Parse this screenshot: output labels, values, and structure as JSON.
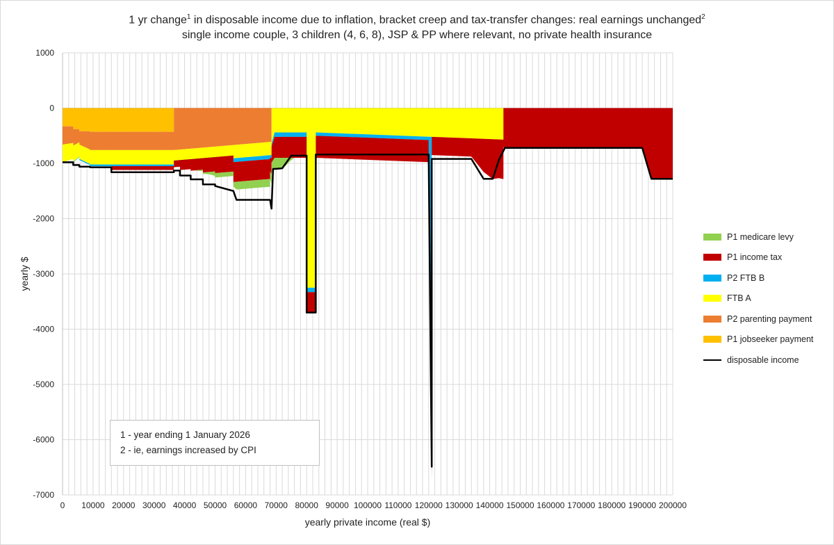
{
  "chart_data": {
    "type": "area",
    "title_line1_main": "1 yr change",
    "title_line1_sup1": "1",
    "title_line1_rest": " in disposable income due to inflation, bracket creep and tax-transfer changes: real earnings unchanged",
    "title_line1_sup2": "2",
    "title_line2": "single income couple, 3 children (4, 6, 8), JSP & PP where relevant, no private health insurance",
    "xlabel": "yearly private income (real $)",
    "ylabel": "yearly $",
    "xlim": [
      0,
      200000
    ],
    "ylim": [
      -7000,
      1000
    ],
    "xticks": [
      0,
      10000,
      20000,
      30000,
      40000,
      50000,
      60000,
      70000,
      80000,
      90000,
      100000,
      110000,
      120000,
      130000,
      140000,
      150000,
      160000,
      170000,
      180000,
      190000,
      200000
    ],
    "yticks": [
      1000,
      0,
      -1000,
      -2000,
      -3000,
      -4000,
      -5000,
      -6000,
      -7000
    ],
    "gridlines": true,
    "legend_position": "right",
    "colors": {
      "medicare": "#92d050",
      "income_tax": "#c00000",
      "ftb_b": "#00b0f0",
      "ftb_a": "#ffff00",
      "parenting": "#ed7d31",
      "jobseeker": "#ffc000",
      "disposable": "#000000"
    },
    "series": [
      {
        "name": "P1 jobseeker payment",
        "key": "jobseeker",
        "base": "zero",
        "x": [
          0,
          1,
          3500,
          3501,
          5500,
          5501,
          9000,
          9001,
          36500,
          36501,
          200000
        ],
        "y": [
          -330,
          -330,
          -330,
          -380,
          -380,
          -420,
          -420,
          -430,
          -430,
          0,
          0
        ]
      },
      {
        "name": "P2 parenting payment",
        "key": "parenting",
        "base": "jobseeker",
        "x": [
          0,
          1,
          3500,
          3501,
          5500,
          5501,
          9000,
          9001,
          36500,
          36501,
          68500,
          68501,
          200000
        ],
        "y": [
          -330,
          -330,
          -300,
          -300,
          -240,
          -240,
          -330,
          -330,
          -330,
          -760,
          -610,
          0,
          0
        ]
      },
      {
        "name": "FTB A",
        "key": "ftb_a",
        "base": "parenting",
        "x": [
          0,
          1,
          3500,
          3501,
          5500,
          5501,
          9000,
          9001,
          36500,
          36501,
          68500,
          68501,
          69500,
          80000,
          80001,
          83000,
          83001,
          144500,
          144501,
          200000
        ],
        "y": [
          -320,
          -320,
          -290,
          -290,
          -260,
          -260,
          -260,
          -260,
          -260,
          -240,
          -240,
          -640,
          -440,
          -440,
          -3250,
          -3250,
          -440,
          -570,
          0,
          0
        ]
      },
      {
        "name": "P2 FTB B",
        "key": "ftb_b",
        "base": "ftb_a",
        "x": [
          0,
          1,
          3500,
          3501,
          5500,
          5501,
          9000,
          9001,
          36500,
          36501,
          56000,
          56001,
          68000,
          68001,
          69500,
          80000,
          80001,
          83000,
          83001,
          120000,
          120001,
          121000,
          121001,
          200000
        ],
        "y": [
          0,
          0,
          0,
          -10,
          -10,
          -20,
          -20,
          -30,
          -30,
          50,
          50,
          -70,
          -70,
          -40,
          -80,
          -80,
          -80,
          -80,
          -60,
          -60,
          -150,
          -5400,
          0,
          0
        ]
      },
      {
        "name": "P1 income tax",
        "key": "income_tax",
        "base": "ftb_b",
        "x": [
          0,
          1,
          9000,
          9001,
          16000,
          16001,
          36500,
          36501,
          38500,
          38501,
          42000,
          42001,
          46000,
          46001,
          50000,
          50001,
          56000,
          56001,
          68000,
          68001,
          69500,
          80000,
          80001,
          83000,
          83001,
          120000,
          120001,
          121000,
          121001,
          134000,
          138000,
          141000,
          143000,
          145000,
          190000,
          193000,
          200000
        ],
        "y": [
          0,
          0,
          0,
          0,
          0,
          -70,
          -70,
          -120,
          -120,
          -180,
          -180,
          -210,
          -210,
          -260,
          -260,
          -290,
          -290,
          -360,
          -360,
          -250,
          -380,
          -380,
          -370,
          -370,
          -400,
          -400,
          -350,
          -800,
          -330,
          -330,
          -600,
          -720,
          -700,
          -720,
          -720,
          -1280,
          -1280
        ]
      },
      {
        "name": "P1 medicare levy",
        "key": "medicare",
        "base": "income_tax",
        "x": [
          0,
          43000,
          48000,
          50000,
          56000,
          57000,
          68000,
          69000,
          72000,
          75000,
          76000,
          200000
        ],
        "y": [
          0,
          0,
          -40,
          -80,
          -80,
          -140,
          -140,
          -200,
          -200,
          -40,
          0,
          0
        ]
      }
    ],
    "disposable": {
      "name": "disposable income",
      "x": [
        0,
        3500,
        3501,
        5500,
        5501,
        9000,
        9001,
        16000,
        16001,
        36500,
        36501,
        38500,
        38501,
        42000,
        42001,
        46000,
        46001,
        50000,
        50001,
        56000,
        57000,
        68000,
        68500,
        69000,
        69500,
        72000,
        75000,
        80000,
        80001,
        83000,
        83001,
        120000,
        120001,
        121000,
        121001,
        134000,
        138000,
        141000,
        143000,
        145000,
        190000,
        193000,
        200000
      ],
      "y": [
        -980,
        -980,
        -1030,
        -1030,
        -1060,
        -1060,
        -1070,
        -1070,
        -1160,
        -1160,
        -1130,
        -1130,
        -1220,
        -1220,
        -1290,
        -1290,
        -1380,
        -1380,
        -1410,
        -1500,
        -1660,
        -1660,
        -1820,
        -1100,
        -1100,
        -1090,
        -860,
        -860,
        -3700,
        -3700,
        -840,
        -840,
        -920,
        -6490,
        -920,
        -920,
        -1280,
        -1280,
        -940,
        -720,
        -720,
        -1280,
        -1280
      ]
    },
    "legend": [
      {
        "label": "P1 medicare levy",
        "key": "medicare"
      },
      {
        "label": "P1 income tax",
        "key": "income_tax"
      },
      {
        "label": "P2 FTB B",
        "key": "ftb_b"
      },
      {
        "label": "FTB A",
        "key": "ftb_a"
      },
      {
        "label": "P2 parenting payment",
        "key": "parenting"
      },
      {
        "label": "P1 jobseeker payment",
        "key": "jobseeker"
      },
      {
        "label": "disposable income",
        "key": "disposable"
      }
    ],
    "notes": [
      "1 - year ending 1 January 2026",
      "2 - ie, earnings increased by CPI"
    ]
  }
}
